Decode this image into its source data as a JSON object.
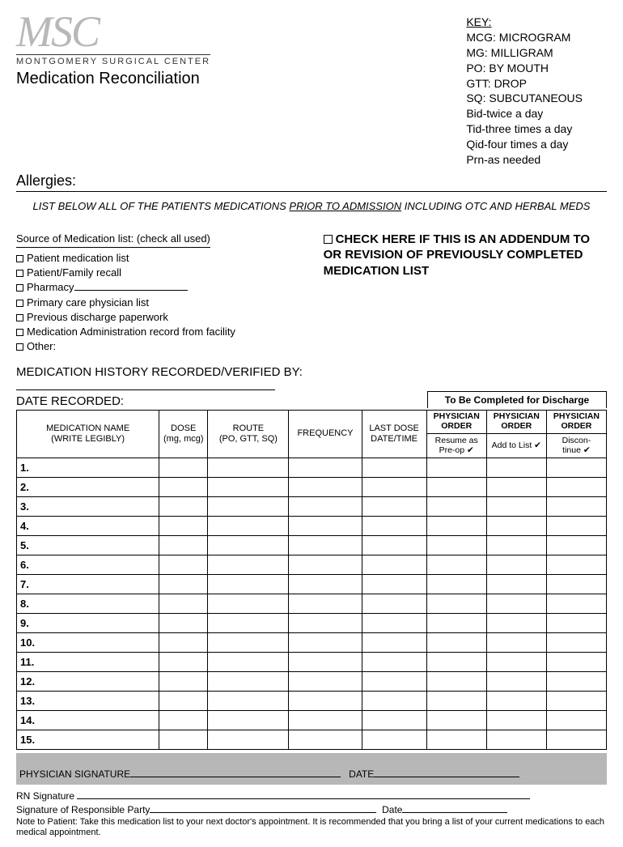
{
  "logo": {
    "script": "MSC",
    "name": "MONTGOMERY SURGICAL CENTER"
  },
  "title": "Medication Reconciliation",
  "key": {
    "heading": "KEY:",
    "lines": [
      "MCG: MICROGRAM",
      "MG: MILLIGRAM",
      "PO: BY  MOUTH",
      "GTT: DROP",
      "SQ: SUBCUTANEOUS",
      "Bid-twice a day",
      "Tid-three times a day",
      "Qid-four times a day",
      "Prn-as needed"
    ]
  },
  "allergies_label": "Allergies:",
  "instruction": {
    "pre": "LIST BELOW ALL OF THE PATIENTS MEDICATIONS ",
    "und": "PRIOR TO ADMISSION",
    "post": " INCLUDING OTC AND HERBAL MEDS"
  },
  "source": {
    "heading": "Source of Medication list: (check all used)",
    "items": [
      "Patient medication list",
      "Patient/Family recall",
      "Pharmacy",
      "Primary care physician list",
      "Previous discharge paperwork",
      "Medication Administration record from facility",
      "Other:"
    ]
  },
  "addendum": "CHECK HERE IF THIS IS AN ADDENDUM TO OR REVISION OF PREVIOUSLY COMPLETED MEDICATION LIST",
  "history_label": "MEDICATION HISTORY RECORDED/VERIFIED BY:",
  "date_recorded_label": "DATE RECORDED:",
  "discharge_header": "To Be Completed for Discharge",
  "columns": {
    "med_name": "MEDICATION NAME\n(WRITE LEGIBLY)",
    "dose": "DOSE\n(mg, mcg)",
    "route": "ROUTE\n(PO, GTT, SQ)",
    "freq": "FREQUENCY",
    "last_dose": "LAST DOSE\nDATE/TIME",
    "phys_order": "PHYSICIAN ORDER",
    "resume": "Resume as Pre-op ✔",
    "add": "Add to List ✔",
    "discon": "Discon-\ntinue ✔"
  },
  "rows": [
    "1.",
    "2.",
    "3.",
    "4.",
    "5.",
    "6.",
    "7.",
    "8.",
    "9.",
    "10.",
    "11.",
    "12.",
    "13.",
    "14.",
    "15."
  ],
  "signatures": {
    "physician": "PHYSICIAN SIGNATURE",
    "date": "DATE",
    "rn": "RN Signature",
    "responsible": "Signature of Responsible Party",
    "date2": "Date"
  },
  "note": "Note to Patient: Take this medication list to your next doctor's appointment. It is recommended that you bring a list of your current medications to each medical appointment.",
  "widths": {
    "med_name": 176,
    "dose": 60,
    "route": 100,
    "freq": 90,
    "last_dose": 80,
    "resume": 74,
    "add": 74,
    "discon": 74
  }
}
